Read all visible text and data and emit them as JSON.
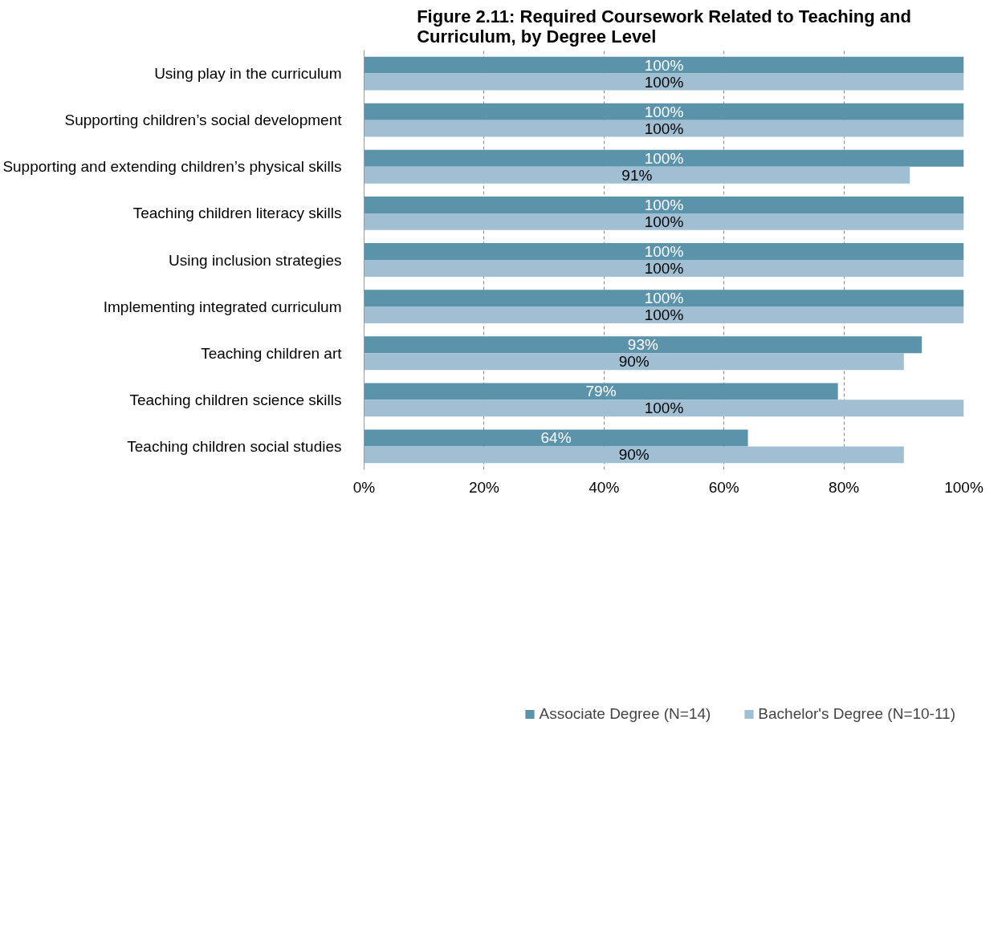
{
  "chart_data": {
    "type": "bar",
    "orientation": "horizontal",
    "title": "Figure 2.11: Required Coursework Related to Teaching and Curriculum, by Degree Level",
    "categories": [
      "Using play in the curriculum",
      "Supporting children’s social development",
      "Supporting and extending children’s physical skills",
      "Teaching children literacy skills",
      "Using inclusion strategies",
      "Implementing integrated curriculum",
      "Teaching children art",
      "Teaching children science skills",
      "Teaching children social studies"
    ],
    "series": [
      {
        "name": "Associate Degree (N=14)",
        "color": "#5b93ab",
        "values": [
          100,
          100,
          100,
          100,
          100,
          100,
          93,
          79,
          64
        ],
        "value_labels": [
          "100%",
          "100%",
          "100%",
          "100%",
          "100%",
          "100%",
          "93%",
          "79%",
          "64%"
        ]
      },
      {
        "name": "Bachelor's Degree (N=10-11)",
        "color": "#a0bfd3",
        "values": [
          100,
          100,
          91,
          100,
          100,
          100,
          90,
          100,
          90
        ],
        "value_labels": [
          "100%",
          "100%",
          "91%",
          "100%",
          "100%",
          "100%",
          "90%",
          "100%",
          "90%"
        ]
      }
    ],
    "xlim": [
      0,
      100
    ],
    "xticks": [
      {
        "value": 0,
        "label": "0%"
      },
      {
        "value": 20,
        "label": "20%"
      },
      {
        "value": 40,
        "label": "40%"
      },
      {
        "value": 60,
        "label": "60%"
      },
      {
        "value": 80,
        "label": "80%"
      },
      {
        "value": 100,
        "label": "100%"
      }
    ],
    "grid": "x",
    "legend": "bottom"
  }
}
